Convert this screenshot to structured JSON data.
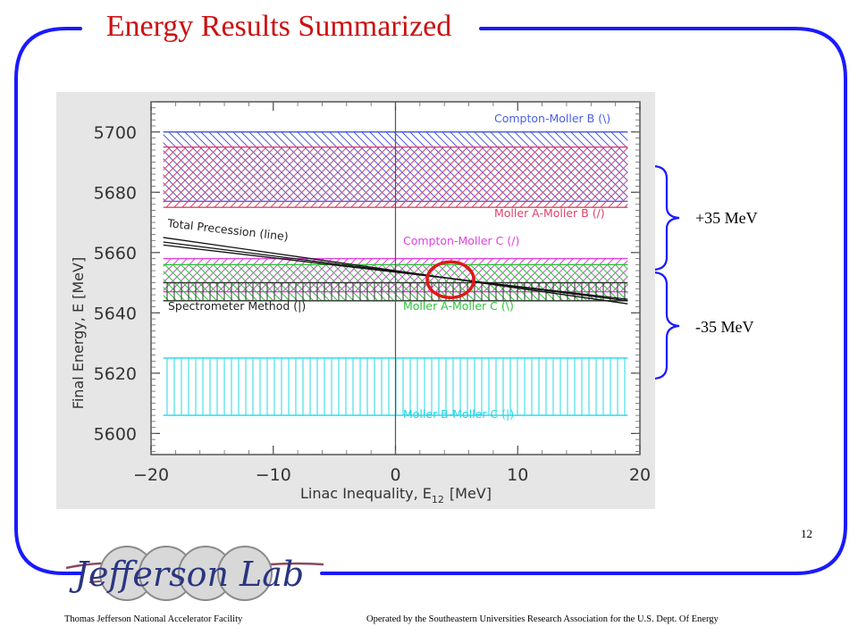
{
  "slide": {
    "title": "Energy Results Summarized",
    "page_number": "12",
    "brace_labels": {
      "upper": "+35 MeV",
      "lower": "-35 MeV"
    },
    "footer": {
      "left": "Thomas Jefferson National Accelerator Facility",
      "right": "Operated by the Southeastern Universities Research Association for the U.S.  Dept.  Of Energy"
    },
    "logo": {
      "text": "Jefferson Lab"
    },
    "colors": {
      "frame": "#1a1aff",
      "title": "#cc1111",
      "highlight_circle": "#e01818"
    }
  },
  "chart_data": {
    "type": "area",
    "xlabel": "Linac Inequality, E",
    "xlabel_sub": "12",
    "xlabel_unit": "[MeV]",
    "ylabel": "Final Energy, E [MeV]",
    "xlim": [
      -20,
      20
    ],
    "ylim": [
      5593,
      5710
    ],
    "x_ticks": [
      "-20",
      "-10",
      "0",
      "10",
      "20"
    ],
    "y_ticks": [
      "5600",
      "5620",
      "5640",
      "5660",
      "5680",
      "5700"
    ],
    "grid": false,
    "bands": [
      {
        "name": "Compton-Moller B (\\)",
        "y_min": 5677,
        "y_max": 5700,
        "x_range": [
          -19,
          19
        ],
        "hatch": "backslash",
        "color": "#4a5ee8"
      },
      {
        "name": "Moller A-Moller B (/)",
        "y_min": 5675,
        "y_max": 5695,
        "x_range": [
          -19,
          19
        ],
        "hatch": "slash",
        "color": "#e0406a"
      },
      {
        "name": "Compton-Moller C (/)",
        "y_min": 5647,
        "y_max": 5658,
        "x_range": [
          -19,
          19
        ],
        "hatch": "slash",
        "color": "#e040e0"
      },
      {
        "name": "Moller A-Moller C (\\)",
        "y_min": 5644,
        "y_max": 5656,
        "x_range": [
          -19,
          19
        ],
        "hatch": "backslash",
        "color": "#2ec43a"
      },
      {
        "name": "Spectrometer Method (|)",
        "y_min": 5644,
        "y_max": 5650,
        "x_range": [
          -19,
          19
        ],
        "hatch": "vertical",
        "color": "#333333"
      },
      {
        "name": "Moller B-Moller C (|)",
        "y_min": 5606,
        "y_max": 5625,
        "x_range": [
          -19,
          19
        ],
        "hatch": "vertical",
        "color": "#20d8e8"
      }
    ],
    "lines": [
      {
        "name": "Total Precession (line)",
        "x": [
          -19,
          19
        ],
        "y": [
          5665,
          5643
        ],
        "color": "#111111"
      },
      {
        "x": [
          -19,
          19
        ],
        "y": [
          5663.5,
          5644
        ],
        "color": "#111111"
      },
      {
        "x": [
          -19,
          19
        ],
        "y": [
          5662.5,
          5644.5
        ],
        "color": "#111111"
      }
    ],
    "vline_x": 0,
    "highlight": {
      "x": 4.5,
      "y": 5651
    }
  }
}
